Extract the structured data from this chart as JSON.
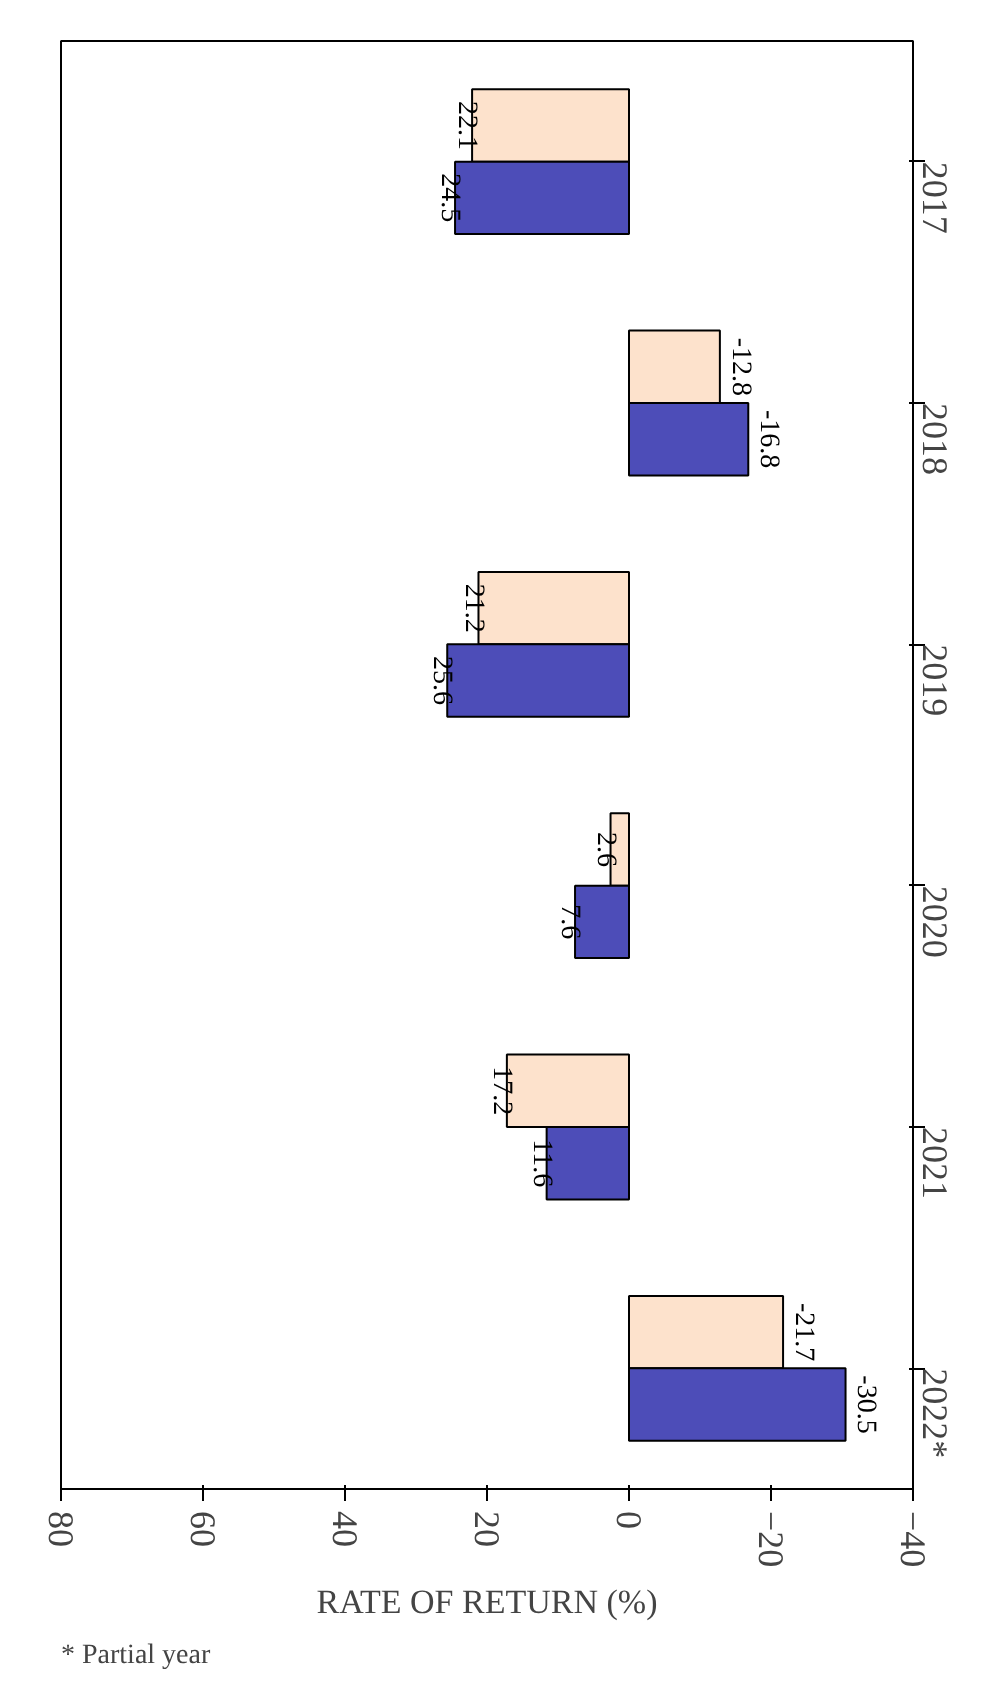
{
  "chart_data": {
    "type": "bar",
    "orientation": "horizontal",
    "xlabel": "RATE OF RETURN (%)",
    "categories": [
      "2017",
      "2018",
      "2019",
      "2020",
      "2021",
      "2022*"
    ],
    "series": [
      {
        "color": "#fde2cc",
        "values": [
          22.1,
          -12.8,
          21.2,
          2.6,
          17.2,
          -21.7
        ]
      },
      {
        "color": "#4d4db8",
        "values": [
          24.5,
          -16.8,
          25.6,
          7.6,
          11.6,
          -30.5
        ]
      }
    ],
    "xlim": [
      80,
      -40
    ],
    "xticks": [
      80,
      60,
      40,
      20,
      0,
      -20,
      -40
    ],
    "data_labels": true,
    "grid": false,
    "annotations": [
      "* Partial year"
    ]
  }
}
